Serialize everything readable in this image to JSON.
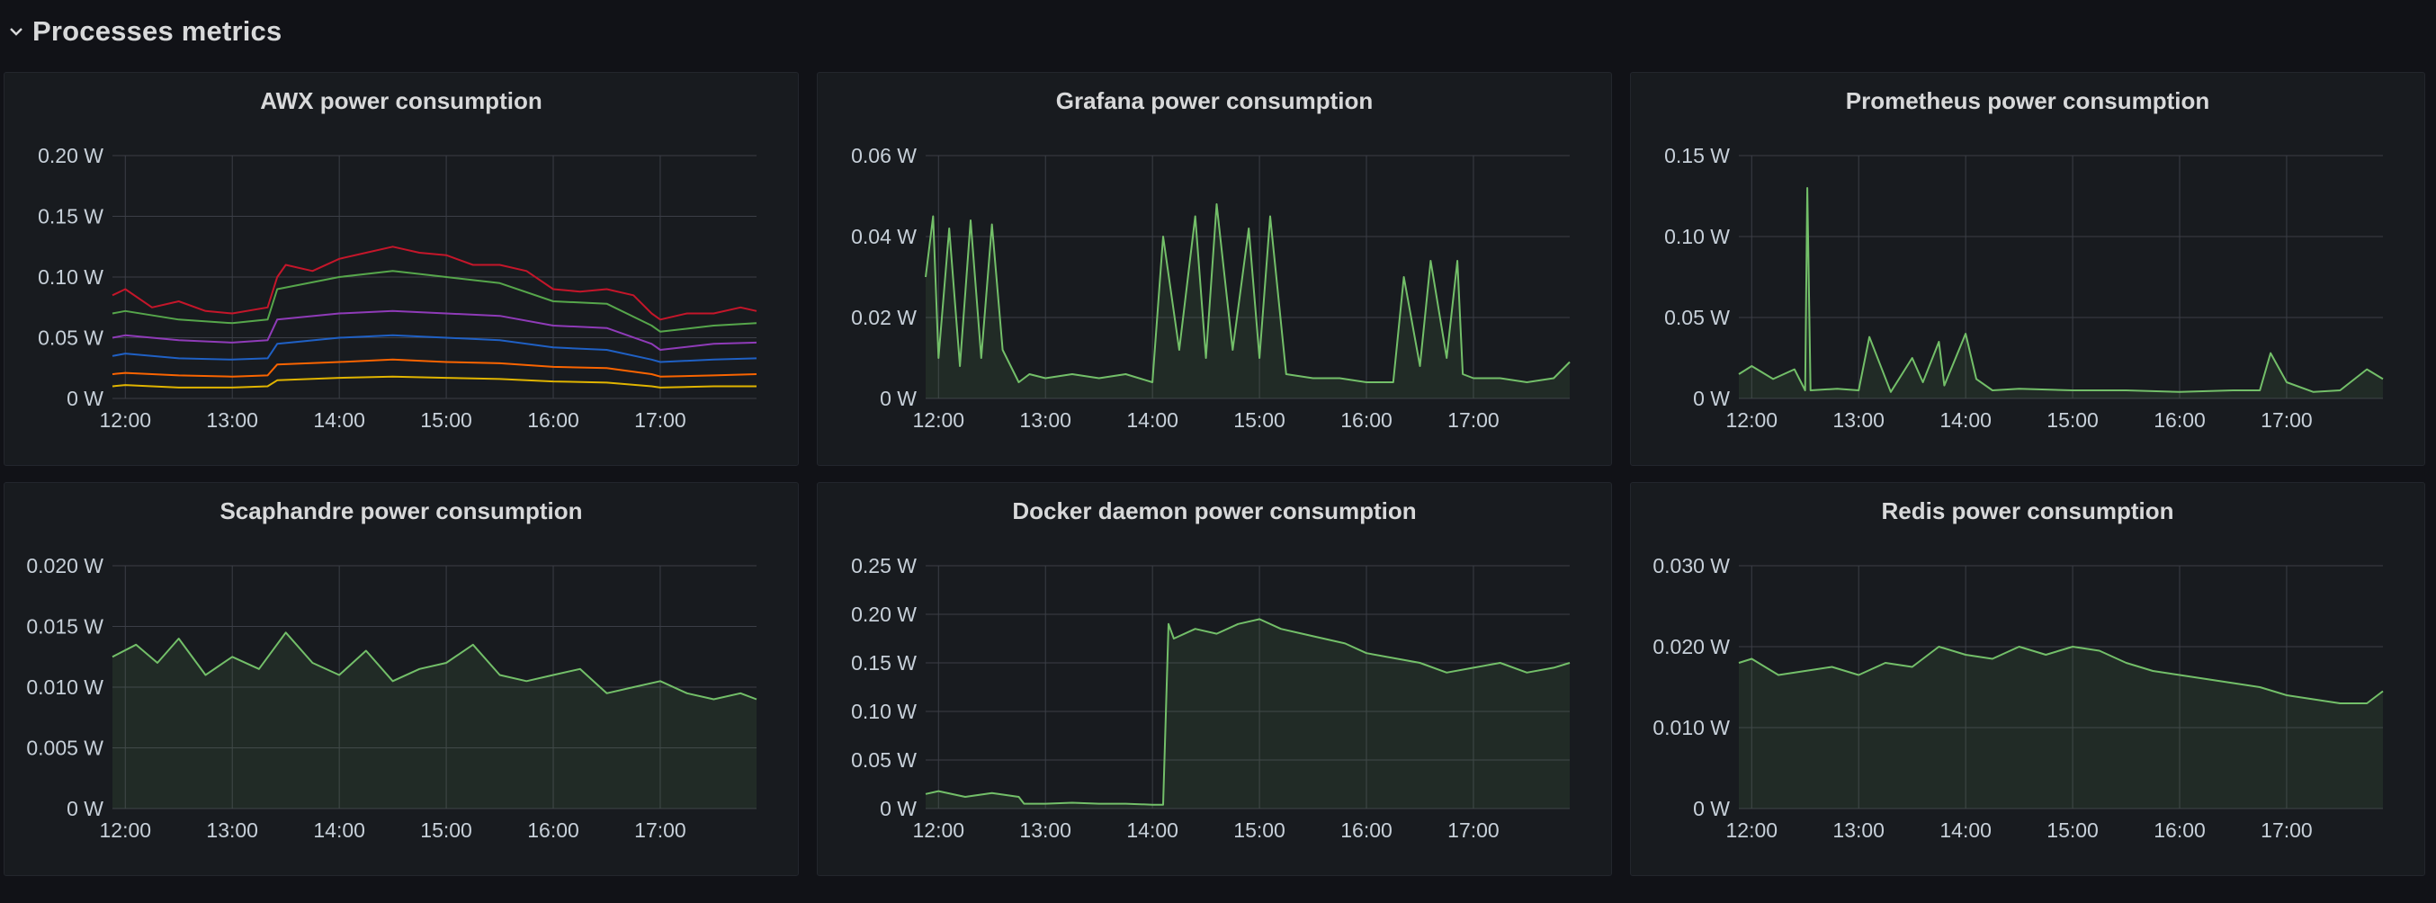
{
  "row": {
    "title": "Processes metrics",
    "icon": "chevron-down-icon"
  },
  "colors": {
    "background": "#111217",
    "panel": "#181b1f",
    "grid": "#3b3e46",
    "series_green": "#73bf69"
  },
  "chart_data": [
    {
      "id": "awx",
      "type": "line",
      "title": "AWX power consumption",
      "x_ticks": [
        "12:00",
        "13:00",
        "14:00",
        "15:00",
        "16:00",
        "17:00"
      ],
      "y_ticks": [
        "0 W",
        "0.05 W",
        "0.10 W",
        "0.15 W",
        "0.20 W"
      ],
      "ylim": [
        0,
        0.2
      ],
      "xlim_hours": [
        11.88,
        17.9
      ],
      "fill": false,
      "series": [
        {
          "color": "#c4162a",
          "x": [
            11.88,
            12.0,
            12.25,
            12.5,
            12.75,
            13.0,
            13.33,
            13.42,
            13.5,
            13.75,
            14.0,
            14.25,
            14.5,
            14.75,
            15.0,
            15.25,
            15.5,
            15.75,
            16.0,
            16.25,
            16.5,
            16.75,
            16.92,
            17.0,
            17.25,
            17.5,
            17.75,
            17.9
          ],
          "values": [
            0.085,
            0.09,
            0.075,
            0.08,
            0.072,
            0.07,
            0.075,
            0.1,
            0.11,
            0.105,
            0.115,
            0.12,
            0.125,
            0.12,
            0.118,
            0.11,
            0.11,
            0.105,
            0.09,
            0.088,
            0.09,
            0.085,
            0.07,
            0.065,
            0.07,
            0.07,
            0.075,
            0.072
          ]
        },
        {
          "color": "#56a64b",
          "x": [
            11.88,
            12.0,
            12.5,
            13.0,
            13.33,
            13.42,
            14.0,
            14.5,
            15.0,
            15.5,
            16.0,
            16.5,
            16.92,
            17.0,
            17.5,
            17.9
          ],
          "values": [
            0.07,
            0.072,
            0.065,
            0.062,
            0.065,
            0.09,
            0.1,
            0.105,
            0.1,
            0.095,
            0.08,
            0.078,
            0.06,
            0.055,
            0.06,
            0.062
          ]
        },
        {
          "color": "#8f3bb8",
          "x": [
            11.88,
            12.0,
            12.5,
            13.0,
            13.33,
            13.42,
            14.0,
            14.5,
            15.0,
            15.5,
            16.0,
            16.5,
            16.92,
            17.0,
            17.5,
            17.9
          ],
          "values": [
            0.05,
            0.052,
            0.048,
            0.046,
            0.048,
            0.065,
            0.07,
            0.072,
            0.07,
            0.068,
            0.06,
            0.058,
            0.045,
            0.04,
            0.045,
            0.046
          ]
        },
        {
          "color": "#1f60c4",
          "x": [
            11.88,
            12.0,
            12.5,
            13.0,
            13.33,
            13.42,
            14.0,
            14.5,
            15.0,
            15.5,
            16.0,
            16.5,
            16.92,
            17.0,
            17.5,
            17.9
          ],
          "values": [
            0.035,
            0.037,
            0.033,
            0.032,
            0.033,
            0.045,
            0.05,
            0.052,
            0.05,
            0.048,
            0.042,
            0.04,
            0.032,
            0.03,
            0.032,
            0.033
          ]
        },
        {
          "color": "#fa6400",
          "x": [
            11.88,
            12.0,
            12.5,
            13.0,
            13.33,
            13.42,
            14.0,
            14.5,
            15.0,
            15.5,
            16.0,
            16.5,
            16.92,
            17.0,
            17.5,
            17.9
          ],
          "values": [
            0.02,
            0.021,
            0.019,
            0.018,
            0.019,
            0.028,
            0.03,
            0.032,
            0.03,
            0.029,
            0.026,
            0.025,
            0.02,
            0.018,
            0.019,
            0.02
          ]
        },
        {
          "color": "#e0b400",
          "x": [
            11.88,
            12.0,
            12.5,
            13.0,
            13.33,
            13.42,
            14.0,
            14.5,
            15.0,
            15.5,
            16.0,
            16.5,
            16.92,
            17.0,
            17.5,
            17.9
          ],
          "values": [
            0.01,
            0.011,
            0.009,
            0.009,
            0.01,
            0.015,
            0.017,
            0.018,
            0.017,
            0.016,
            0.014,
            0.013,
            0.01,
            0.009,
            0.01,
            0.01
          ]
        }
      ]
    },
    {
      "id": "grafana",
      "type": "line",
      "title": "Grafana power consumption",
      "x_ticks": [
        "12:00",
        "13:00",
        "14:00",
        "15:00",
        "16:00",
        "17:00"
      ],
      "y_ticks": [
        "0 W",
        "0.02 W",
        "0.04 W",
        "0.06 W"
      ],
      "ylim": [
        0,
        0.06
      ],
      "xlim_hours": [
        11.88,
        17.9
      ],
      "fill": true,
      "series": [
        {
          "color": "#73bf69",
          "x": [
            11.88,
            11.95,
            12.0,
            12.1,
            12.2,
            12.3,
            12.4,
            12.5,
            12.6,
            12.75,
            12.85,
            13.0,
            13.25,
            13.5,
            13.75,
            14.0,
            14.1,
            14.25,
            14.4,
            14.5,
            14.6,
            14.75,
            14.9,
            15.0,
            15.1,
            15.25,
            15.5,
            15.75,
            16.0,
            16.25,
            16.35,
            16.5,
            16.6,
            16.75,
            16.85,
            16.9,
            17.0,
            17.25,
            17.5,
            17.75,
            17.9
          ],
          "values": [
            0.03,
            0.045,
            0.01,
            0.042,
            0.008,
            0.044,
            0.01,
            0.043,
            0.012,
            0.004,
            0.006,
            0.005,
            0.006,
            0.005,
            0.006,
            0.004,
            0.04,
            0.012,
            0.045,
            0.01,
            0.048,
            0.012,
            0.042,
            0.01,
            0.045,
            0.006,
            0.005,
            0.005,
            0.004,
            0.004,
            0.03,
            0.008,
            0.034,
            0.01,
            0.034,
            0.006,
            0.005,
            0.005,
            0.004,
            0.005,
            0.009
          ]
        }
      ]
    },
    {
      "id": "prometheus",
      "type": "line",
      "title": "Prometheus power consumption",
      "x_ticks": [
        "12:00",
        "13:00",
        "14:00",
        "15:00",
        "16:00",
        "17:00"
      ],
      "y_ticks": [
        "0 W",
        "0.05 W",
        "0.10 W",
        "0.15 W"
      ],
      "ylim": [
        0,
        0.15
      ],
      "xlim_hours": [
        11.88,
        17.9
      ],
      "fill": true,
      "series": [
        {
          "color": "#73bf69",
          "x": [
            11.88,
            12.0,
            12.2,
            12.4,
            12.5,
            12.52,
            12.55,
            12.8,
            13.0,
            13.1,
            13.3,
            13.5,
            13.6,
            13.75,
            13.8,
            14.0,
            14.1,
            14.25,
            14.5,
            15.0,
            15.5,
            16.0,
            16.5,
            16.75,
            16.85,
            17.0,
            17.25,
            17.5,
            17.75,
            17.9
          ],
          "values": [
            0.015,
            0.02,
            0.012,
            0.018,
            0.005,
            0.13,
            0.005,
            0.006,
            0.005,
            0.038,
            0.004,
            0.025,
            0.01,
            0.035,
            0.008,
            0.04,
            0.012,
            0.005,
            0.006,
            0.005,
            0.005,
            0.004,
            0.005,
            0.005,
            0.028,
            0.01,
            0.004,
            0.005,
            0.018,
            0.012
          ]
        }
      ]
    },
    {
      "id": "scaphandre",
      "type": "line",
      "title": "Scaphandre power consumption",
      "x_ticks": [
        "12:00",
        "13:00",
        "14:00",
        "15:00",
        "16:00",
        "17:00"
      ],
      "y_ticks": [
        "0 W",
        "0.005 W",
        "0.010 W",
        "0.015 W",
        "0.020 W"
      ],
      "ylim": [
        0,
        0.02
      ],
      "xlim_hours": [
        11.88,
        17.9
      ],
      "fill": true,
      "series": [
        {
          "color": "#73bf69",
          "x": [
            11.88,
            12.1,
            12.3,
            12.5,
            12.75,
            13.0,
            13.25,
            13.5,
            13.75,
            14.0,
            14.25,
            14.5,
            14.75,
            15.0,
            15.25,
            15.5,
            15.75,
            16.0,
            16.25,
            16.5,
            16.75,
            17.0,
            17.25,
            17.5,
            17.75,
            17.9
          ],
          "values": [
            0.0125,
            0.0135,
            0.012,
            0.014,
            0.011,
            0.0125,
            0.0115,
            0.0145,
            0.012,
            0.011,
            0.013,
            0.0105,
            0.0115,
            0.012,
            0.0135,
            0.011,
            0.0105,
            0.011,
            0.0115,
            0.0095,
            0.01,
            0.0105,
            0.0095,
            0.009,
            0.0095,
            0.009
          ]
        }
      ]
    },
    {
      "id": "docker",
      "type": "line",
      "title": "Docker daemon power consumption",
      "x_ticks": [
        "12:00",
        "13:00",
        "14:00",
        "15:00",
        "16:00",
        "17:00"
      ],
      "y_ticks": [
        "0 W",
        "0.05 W",
        "0.10 W",
        "0.15 W",
        "0.20 W",
        "0.25 W"
      ],
      "ylim": [
        0,
        0.25
      ],
      "xlim_hours": [
        11.88,
        17.9
      ],
      "fill": true,
      "series": [
        {
          "color": "#73bf69",
          "x": [
            11.88,
            12.0,
            12.25,
            12.5,
            12.75,
            12.8,
            13.0,
            13.25,
            13.5,
            13.75,
            14.0,
            14.1,
            14.15,
            14.2,
            14.4,
            14.6,
            14.8,
            15.0,
            15.2,
            15.4,
            15.6,
            15.8,
            16.0,
            16.25,
            16.5,
            16.75,
            17.0,
            17.25,
            17.5,
            17.75,
            17.9
          ],
          "values": [
            0.015,
            0.018,
            0.012,
            0.016,
            0.012,
            0.005,
            0.005,
            0.006,
            0.005,
            0.005,
            0.004,
            0.004,
            0.19,
            0.175,
            0.185,
            0.18,
            0.19,
            0.195,
            0.185,
            0.18,
            0.175,
            0.17,
            0.16,
            0.155,
            0.15,
            0.14,
            0.145,
            0.15,
            0.14,
            0.145,
            0.15
          ]
        }
      ]
    },
    {
      "id": "redis",
      "type": "line",
      "title": "Redis power consumption",
      "x_ticks": [
        "12:00",
        "13:00",
        "14:00",
        "15:00",
        "16:00",
        "17:00"
      ],
      "y_ticks": [
        "0 W",
        "0.010 W",
        "0.020 W",
        "0.030 W"
      ],
      "ylim": [
        0,
        0.03
      ],
      "xlim_hours": [
        11.88,
        17.9
      ],
      "fill": true,
      "series": [
        {
          "color": "#73bf69",
          "x": [
            11.88,
            12.0,
            12.25,
            12.5,
            12.75,
            13.0,
            13.25,
            13.5,
            13.75,
            14.0,
            14.25,
            14.5,
            14.75,
            15.0,
            15.25,
            15.5,
            15.75,
            16.0,
            16.25,
            16.5,
            16.75,
            17.0,
            17.25,
            17.5,
            17.75,
            17.9
          ],
          "values": [
            0.018,
            0.0185,
            0.0165,
            0.017,
            0.0175,
            0.0165,
            0.018,
            0.0175,
            0.02,
            0.019,
            0.0185,
            0.02,
            0.019,
            0.02,
            0.0195,
            0.018,
            0.017,
            0.0165,
            0.016,
            0.0155,
            0.015,
            0.014,
            0.0135,
            0.013,
            0.013,
            0.0145
          ]
        }
      ]
    }
  ]
}
